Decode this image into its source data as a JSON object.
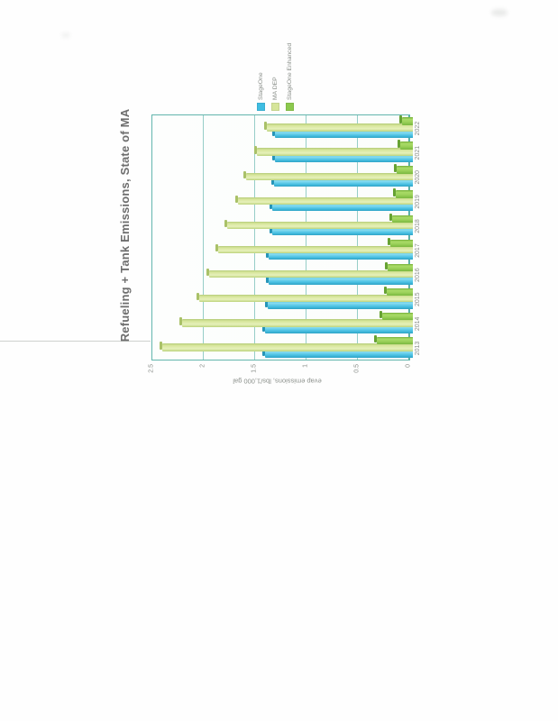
{
  "page": {
    "kind": "scanned report page with rotated chart",
    "background": "#fefefe",
    "chart_rotation": "90 degrees counterclockwise on page"
  },
  "chart_data": {
    "type": "bar",
    "style": "3-D clustered columns (Excel-like), rendered sideways on the page",
    "title": "Refueling + Tank Emissions, State of MA",
    "xlabel": "",
    "ylabel": "evap emissions, lbs/1,000 gal",
    "ylim": [
      0,
      2.5
    ],
    "yticks": [
      "0",
      "0.5",
      "1",
      "1.5",
      "2",
      "2.5"
    ],
    "grid": true,
    "legend_position": "right",
    "categories": [
      "2013",
      "2014",
      "2015",
      "2016",
      "2017",
      "2018",
      "2019",
      "2020",
      "2021",
      "2022"
    ],
    "series": [
      {
        "name": "StageOne",
        "color": "#3FBDE2",
        "values": [
          1.4,
          1.4,
          1.38,
          1.37,
          1.37,
          1.33,
          1.33,
          1.32,
          1.31,
          1.31
        ]
      },
      {
        "name": "MA DEP",
        "color": "#D6E59A",
        "values": [
          2.4,
          2.21,
          2.04,
          1.95,
          1.86,
          1.77,
          1.67,
          1.59,
          1.48,
          1.39
        ]
      },
      {
        "name": "StageOne Enhanced",
        "color": "#8CC94E",
        "values": [
          0.32,
          0.26,
          0.22,
          0.21,
          0.18,
          0.17,
          0.13,
          0.12,
          0.09,
          0.07
        ]
      }
    ],
    "palette": {
      "gridline": "#62B5AD",
      "axis_text": "#8A8F8A",
      "title_text": "#6E6E6E"
    }
  }
}
